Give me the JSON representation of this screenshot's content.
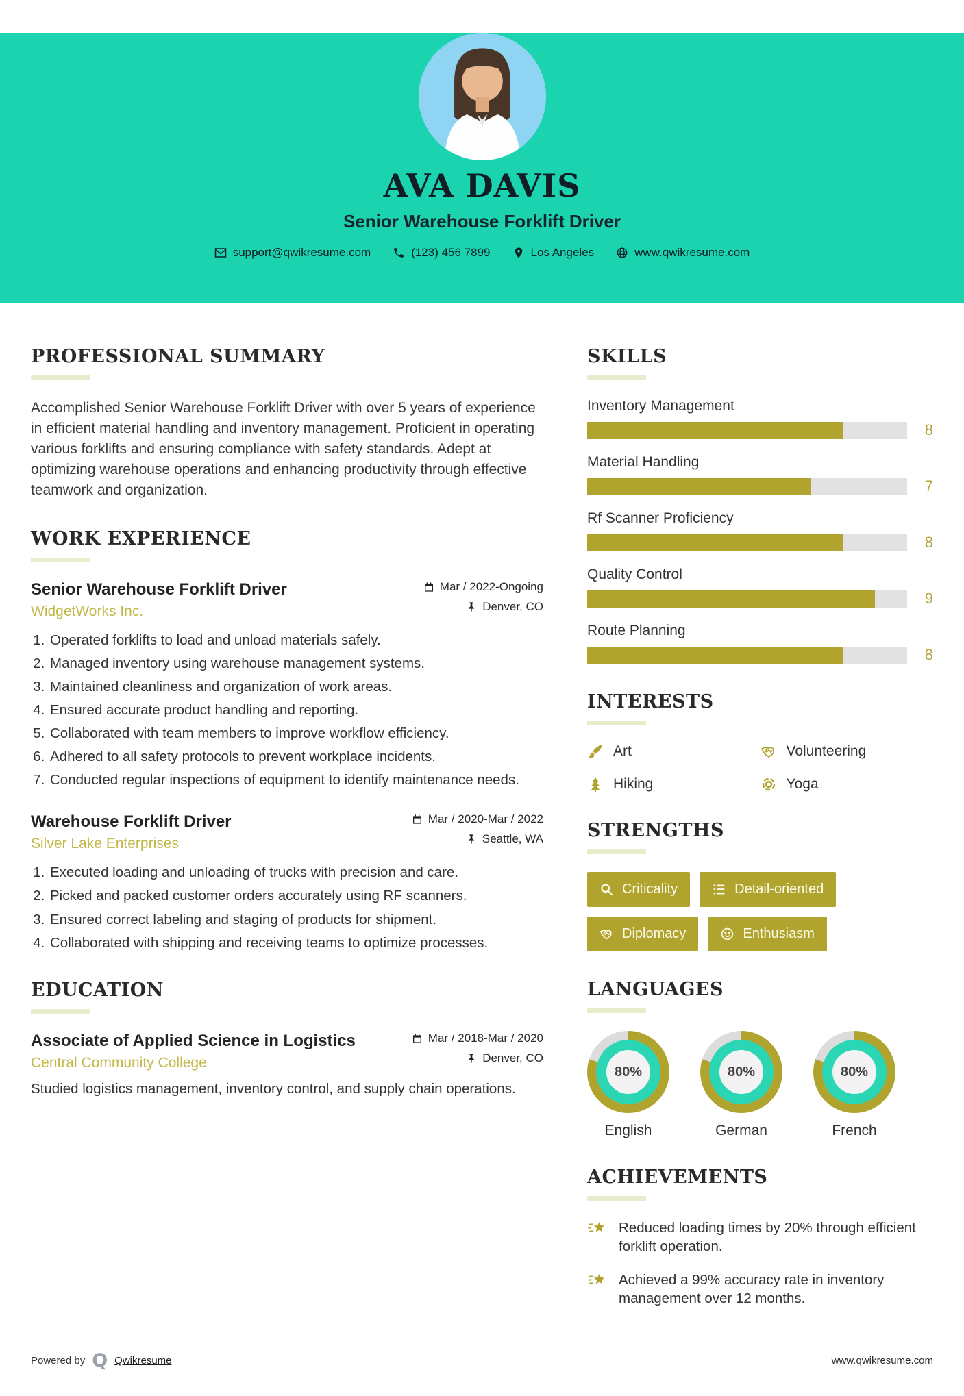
{
  "header": {
    "name": "AVA DAVIS",
    "title": "Senior Warehouse Forklift Driver",
    "contact": {
      "email": "support@qwikresume.com",
      "phone": "(123) 456 7899",
      "location": "Los Angeles",
      "website": "www.qwikresume.com"
    }
  },
  "summary": {
    "heading": "PROFESSIONAL SUMMARY",
    "text": "Accomplished Senior Warehouse Forklift Driver with over 5 years of experience in efficient material handling and inventory management. Proficient in operating various forklifts and ensuring compliance with safety standards. Adept at optimizing warehouse operations and enhancing productivity through effective teamwork and organization."
  },
  "experience": {
    "heading": "WORK EXPERIENCE",
    "jobs": [
      {
        "title": "Senior Warehouse Forklift Driver",
        "company": "WidgetWorks Inc.",
        "dates": "Mar / 2022-Ongoing",
        "location": "Denver, CO",
        "bullets": [
          "Operated forklifts to load and unload materials safely.",
          "Managed inventory using warehouse management systems.",
          "Maintained cleanliness and organization of work areas.",
          "Ensured accurate product handling and reporting.",
          "Collaborated with team members to improve workflow efficiency.",
          "Adhered to all safety protocols to prevent workplace incidents.",
          "Conducted regular inspections of equipment to identify maintenance needs."
        ]
      },
      {
        "title": "Warehouse Forklift Driver",
        "company": "Silver Lake Enterprises",
        "dates": "Mar / 2020-Mar / 2022",
        "location": "Seattle, WA",
        "bullets": [
          "Executed loading and unloading of trucks with precision and care.",
          "Picked and packed customer orders accurately using RF scanners.",
          "Ensured correct labeling and staging of products for shipment.",
          "Collaborated with shipping and receiving teams to optimize processes."
        ]
      }
    ]
  },
  "education": {
    "heading": "EDUCATION",
    "degree": "Associate of Applied Science in Logistics",
    "school": "Central Community College",
    "dates": "Mar / 2018-Mar / 2020",
    "location": "Denver, CO",
    "description": "Studied logistics management, inventory control, and supply chain operations."
  },
  "skills": {
    "heading": "SKILLS",
    "max": 10,
    "items": [
      {
        "label": "Inventory Management",
        "score": "8",
        "pct": 80
      },
      {
        "label": "Material Handling",
        "score": "7",
        "pct": 70
      },
      {
        "label": "Rf Scanner Proficiency",
        "score": "8",
        "pct": 80
      },
      {
        "label": "Quality Control",
        "score": "9",
        "pct": 90
      },
      {
        "label": "Route Planning",
        "score": "8",
        "pct": 80
      }
    ]
  },
  "interests": {
    "heading": "INTERESTS",
    "items": [
      {
        "label": "Art",
        "icon": "paintbrush-icon"
      },
      {
        "label": "Volunteering",
        "icon": "handshake-icon"
      },
      {
        "label": "Hiking",
        "icon": "tree-icon"
      },
      {
        "label": "Yoga",
        "icon": "yoga-wheel-icon"
      }
    ]
  },
  "strengths": {
    "heading": "STRENGTHS",
    "items": [
      {
        "label": "Criticality",
        "icon": "magnifier-icon"
      },
      {
        "label": "Detail-oriented",
        "icon": "list-icon"
      },
      {
        "label": "Diplomacy",
        "icon": "handshake-icon"
      },
      {
        "label": "Enthusiasm",
        "icon": "smiley-icon"
      }
    ]
  },
  "languages": {
    "heading": "LANGUAGES",
    "items": [
      {
        "name": "English",
        "pct": 80,
        "pct_label": "80%"
      },
      {
        "name": "German",
        "pct": 80,
        "pct_label": "80%"
      },
      {
        "name": "French",
        "pct": 80,
        "pct_label": "80%"
      }
    ]
  },
  "achievements": {
    "heading": "ACHIEVEMENTS",
    "items": [
      "Reduced loading times by 20% through efficient forklift operation.",
      "Achieved a 99% accuracy rate in inventory management over 12 months."
    ]
  },
  "footer": {
    "powered_by": "Powered by",
    "logo_glyph": "Q",
    "brand": "Qwikresume",
    "site": "www.qwikresume.com"
  },
  "colors": {
    "header_teal": "#1bd3ae",
    "accent_olive": "#b0a42f",
    "company_gold": "#c3b84a",
    "bar_track": "#e2e2e2",
    "donut_inner_teal": "#2bd6b4",
    "photo_background": "#8fd4f2"
  }
}
